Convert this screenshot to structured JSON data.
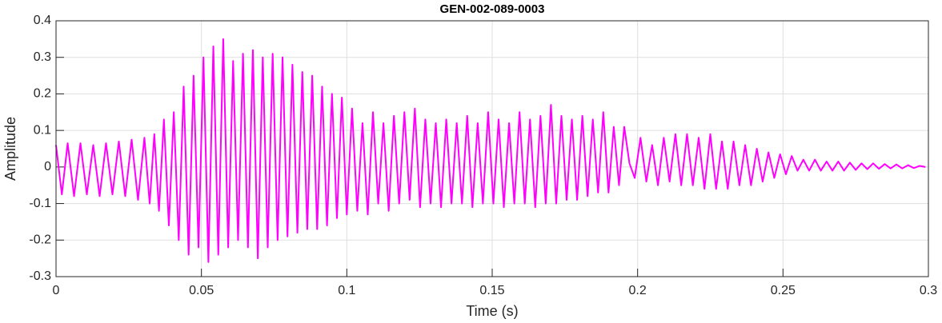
{
  "chart_data": {
    "type": "line",
    "title": "GEN-002-089-0003",
    "x_label": "Time (s)",
    "y_label": "Amplitude",
    "xlim": [
      0,
      0.3
    ],
    "xticks": [
      0,
      0.05,
      0.1,
      0.15,
      0.2,
      0.25,
      0.3
    ],
    "ylim": [
      -0.3,
      0.4
    ],
    "yticks": [
      -0.3,
      -0.2,
      -0.1,
      0,
      0.1,
      0.2,
      0.3,
      0.4
    ],
    "grid": true,
    "series": [
      {
        "name": "GEN-002-089-0003",
        "color": "#ff00ff",
        "x": [
          0,
          0.002,
          0.004,
          0.0062,
          0.0084,
          0.0106,
          0.0128,
          0.015,
          0.0172,
          0.0194,
          0.0216,
          0.0238,
          0.026,
          0.0282,
          0.0304,
          0.0322,
          0.0338,
          0.0354,
          0.0371,
          0.0388,
          0.0405,
          0.0422,
          0.0439,
          0.0456,
          0.0473,
          0.049,
          0.0507,
          0.0524,
          0.0541,
          0.0558,
          0.0575,
          0.0592,
          0.0609,
          0.0626,
          0.0643,
          0.066,
          0.0677,
          0.0694,
          0.0711,
          0.0728,
          0.0745,
          0.0762,
          0.0779,
          0.0796,
          0.0813,
          0.083,
          0.0847,
          0.0864,
          0.0881,
          0.0898,
          0.0915,
          0.0932,
          0.0949,
          0.0966,
          0.0983,
          0.1,
          0.1018,
          0.1036,
          0.1054,
          0.1072,
          0.109,
          0.1108,
          0.1126,
          0.1144,
          0.1162,
          0.118,
          0.1198,
          0.1216,
          0.1234,
          0.1252,
          0.127,
          0.1288,
          0.1306,
          0.1324,
          0.1342,
          0.136,
          0.1378,
          0.1396,
          0.1414,
          0.1432,
          0.145,
          0.1468,
          0.1486,
          0.1504,
          0.1522,
          0.154,
          0.1558,
          0.1576,
          0.1594,
          0.1612,
          0.163,
          0.1648,
          0.1666,
          0.1684,
          0.1702,
          0.172,
          0.1738,
          0.1756,
          0.1774,
          0.1792,
          0.181,
          0.1828,
          0.1846,
          0.1864,
          0.1882,
          0.19,
          0.1918,
          0.1936,
          0.1954,
          0.1972,
          0.199,
          0.201,
          0.203,
          0.205,
          0.207,
          0.209,
          0.211,
          0.213,
          0.215,
          0.217,
          0.219,
          0.221,
          0.223,
          0.225,
          0.227,
          0.229,
          0.231,
          0.233,
          0.235,
          0.237,
          0.239,
          0.241,
          0.243,
          0.245,
          0.247,
          0.249,
          0.251,
          0.253,
          0.255,
          0.257,
          0.259,
          0.261,
          0.263,
          0.265,
          0.267,
          0.269,
          0.271,
          0.273,
          0.275,
          0.277,
          0.279,
          0.281,
          0.283,
          0.285,
          0.287,
          0.289,
          0.291,
          0.293,
          0.295,
          0.297,
          0.299
        ],
        "values": [
          0.06,
          -0.075,
          0.065,
          -0.08,
          0.065,
          -0.075,
          0.06,
          -0.08,
          0.065,
          -0.075,
          0.07,
          -0.08,
          0.075,
          -0.09,
          0.08,
          -0.1,
          0.09,
          -0.12,
          0.13,
          -0.16,
          0.15,
          -0.2,
          0.22,
          -0.24,
          0.25,
          -0.22,
          0.3,
          -0.26,
          0.33,
          -0.24,
          0.35,
          -0.22,
          0.29,
          -0.2,
          0.31,
          -0.22,
          0.32,
          -0.25,
          0.3,
          -0.22,
          0.31,
          -0.2,
          0.3,
          -0.19,
          0.28,
          -0.18,
          0.26,
          -0.17,
          0.25,
          -0.17,
          0.22,
          -0.16,
          0.2,
          -0.14,
          0.19,
          -0.13,
          0.16,
          -0.12,
          0.12,
          -0.13,
          0.15,
          -0.1,
          0.12,
          -0.12,
          0.14,
          -0.1,
          0.15,
          -0.09,
          0.16,
          -0.11,
          0.13,
          -0.1,
          0.12,
          -0.11,
          0.13,
          -0.1,
          0.12,
          -0.1,
          0.14,
          -0.11,
          0.12,
          -0.1,
          0.15,
          -0.1,
          0.13,
          -0.11,
          0.12,
          -0.1,
          0.15,
          -0.1,
          0.13,
          -0.11,
          0.14,
          -0.1,
          0.17,
          -0.1,
          0.14,
          -0.09,
          0.13,
          -0.09,
          0.14,
          -0.08,
          0.13,
          -0.07,
          0.15,
          -0.07,
          0.11,
          -0.05,
          0.11,
          0.01,
          -0.03,
          0.08,
          -0.04,
          0.06,
          -0.05,
          0.08,
          -0.04,
          0.09,
          -0.05,
          0.09,
          -0.05,
          0.08,
          -0.06,
          0.09,
          -0.06,
          0.07,
          -0.06,
          0.07,
          -0.05,
          0.06,
          -0.05,
          0.05,
          -0.04,
          0.04,
          -0.03,
          0.035,
          -0.02,
          0.03,
          -0.01,
          0.02,
          -0.01,
          0.02,
          -0.01,
          0.015,
          -0.01,
          0.015,
          -0.01,
          0.012,
          -0.008,
          0.01,
          -0.006,
          0.01,
          -0.005,
          0.008,
          -0.004,
          0.007,
          -0.004,
          0.005,
          -0.003,
          0.003,
          0
        ]
      }
    ]
  }
}
